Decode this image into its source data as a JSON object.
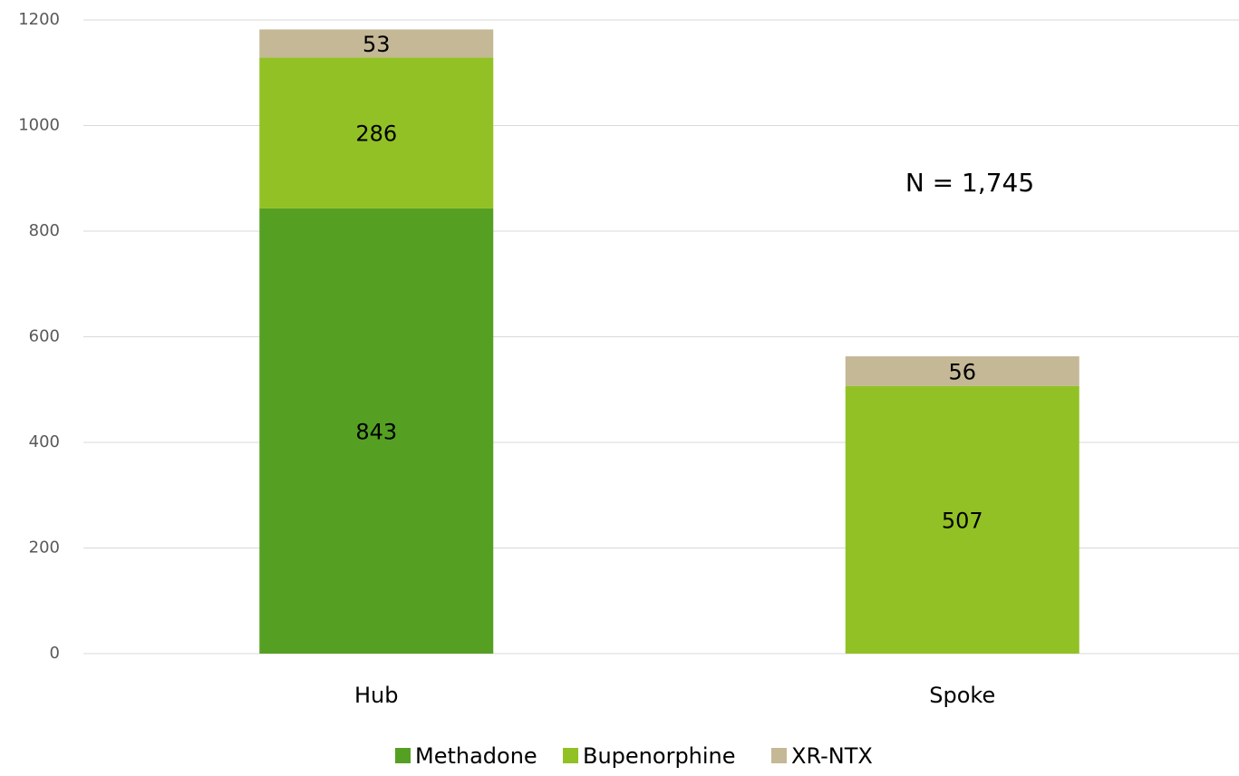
{
  "chart_data": {
    "type": "stacked_bar",
    "categories": [
      "Hub",
      "Spoke"
    ],
    "series": [
      {
        "name": "Methadone",
        "color": "#55a023",
        "values": [
          843,
          null
        ]
      },
      {
        "name": "Bupenorphine",
        "color": "#92c125",
        "values": [
          286,
          507
        ]
      },
      {
        "name": "XR-NTX",
        "color": "#c4b896",
        "values": [
          53,
          56
        ]
      }
    ],
    "annotation": "N = 1,745",
    "ylim": [
      0,
      1200
    ],
    "yticks": [
      0,
      200,
      400,
      600,
      800,
      1000,
      1200
    ],
    "grid": true,
    "legend": "bottom"
  }
}
